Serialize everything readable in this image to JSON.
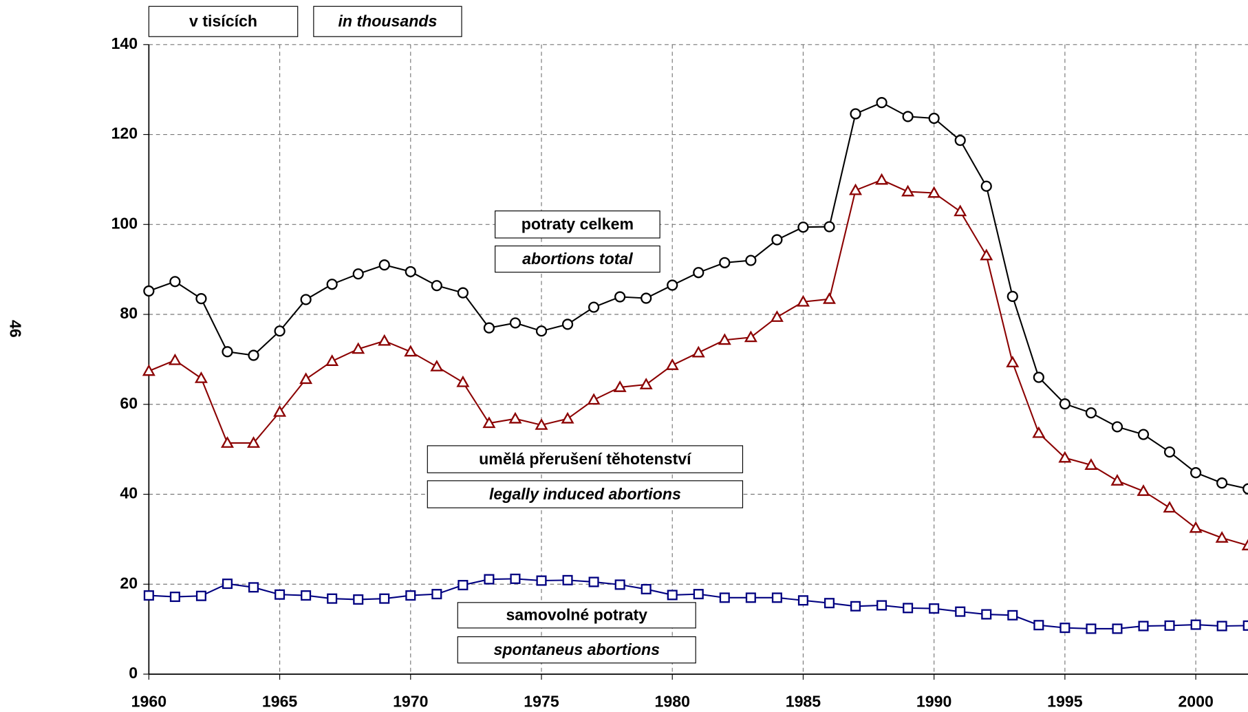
{
  "page_number": "46",
  "chart_data": {
    "type": "line",
    "unit_labels": [
      "v tisících",
      "in thousands"
    ],
    "x": [
      1960,
      1961,
      1962,
      1963,
      1964,
      1965,
      1966,
      1967,
      1968,
      1969,
      1970,
      1971,
      1972,
      1973,
      1974,
      1975,
      1976,
      1977,
      1978,
      1979,
      1980,
      1981,
      1982,
      1983,
      1984,
      1985,
      1986,
      1987,
      1988,
      1989,
      1990,
      1991,
      1992,
      1993,
      1994,
      1995,
      1996,
      1997,
      1998,
      1999,
      2000,
      2001,
      2002
    ],
    "xlim": [
      1960,
      2002
    ],
    "xticks": [
      1960,
      1965,
      1970,
      1975,
      1980,
      1985,
      1990,
      1995,
      2000
    ],
    "ylim": [
      0,
      140
    ],
    "yticks": [
      0,
      20,
      40,
      60,
      80,
      100,
      120,
      140
    ],
    "grid": true,
    "series": [
      {
        "name": "potraty celkem",
        "name_en": "abortions total",
        "color": "#000000",
        "marker": "circle",
        "values": [
          85.2,
          87.3,
          83.5,
          71.7,
          70.9,
          76.3,
          83.3,
          86.7,
          89.0,
          91.0,
          89.5,
          86.4,
          84.8,
          77.0,
          78.1,
          76.3,
          77.8,
          81.6,
          83.9,
          83.6,
          86.5,
          89.3,
          91.5,
          92.0,
          96.6,
          99.4,
          99.5,
          124.6,
          127.1,
          124.0,
          123.6,
          118.7,
          108.5,
          84.0,
          66.0,
          60.1,
          58.1,
          55.0,
          53.3,
          49.4,
          44.8,
          42.5,
          41.2
        ]
      },
      {
        "name": "umělá přerušení těhotenství",
        "name_en": "legally induced abortions",
        "color": "#8b0000",
        "marker": "triangle",
        "values": [
          67.4,
          69.8,
          65.8,
          51.4,
          51.4,
          58.3,
          65.6,
          69.6,
          72.3,
          74.1,
          71.7,
          68.4,
          64.9,
          55.8,
          56.8,
          55.4,
          56.8,
          61.0,
          63.8,
          64.4,
          68.7,
          71.5,
          74.3,
          74.9,
          79.4,
          82.8,
          83.4,
          107.6,
          109.9,
          107.3,
          107.0,
          102.9,
          93.1,
          69.3,
          53.6,
          48.1,
          46.5,
          43.0,
          40.7,
          37.0,
          32.5,
          30.3,
          28.6
        ]
      },
      {
        "name": "samovolné potraty",
        "name_en": "spontaneus abortions",
        "color": "#000080",
        "marker": "square",
        "values": [
          17.5,
          17.2,
          17.4,
          20.1,
          19.3,
          17.7,
          17.5,
          16.8,
          16.6,
          16.8,
          17.5,
          17.8,
          19.8,
          21.1,
          21.2,
          20.8,
          20.9,
          20.5,
          19.9,
          18.9,
          17.6,
          17.8,
          17.0,
          17.0,
          17.0,
          16.4,
          15.8,
          15.1,
          15.3,
          14.7,
          14.6,
          13.9,
          13.3,
          13.1,
          10.9,
          10.3,
          10.1,
          10.1,
          10.7,
          10.8,
          11.0,
          10.7,
          10.8
        ]
      }
    ]
  }
}
